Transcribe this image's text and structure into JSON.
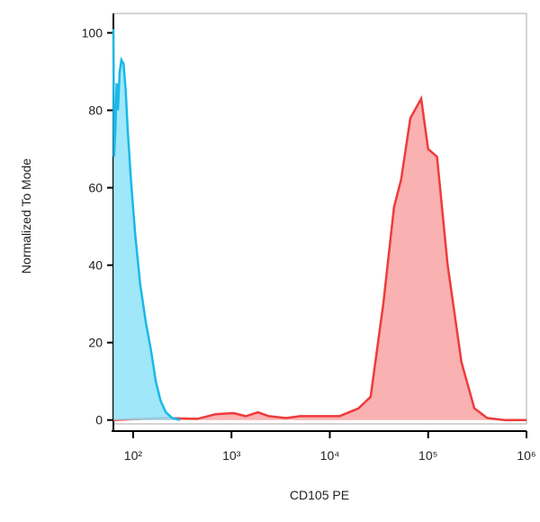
{
  "chart_data": {
    "type": "area",
    "x_label": "CD105 PE",
    "y_label": "Normalized To Mode",
    "xscale": "log",
    "xlim": [
      63,
      1000000
    ],
    "ylim": [
      -1,
      105
    ],
    "xticks": [
      {
        "value": 100,
        "label": "10²"
      },
      {
        "value": 1000,
        "label": "10³"
      },
      {
        "value": 10000,
        "label": "10⁴"
      },
      {
        "value": 100000,
        "label": "10⁵"
      },
      {
        "value": 1000000,
        "label": "10⁶"
      }
    ],
    "yticks": [
      0,
      20,
      40,
      60,
      80,
      100
    ],
    "series": [
      {
        "color": "#ee3b3b",
        "fill": "#f9a3a3",
        "x": [
          63,
          195,
          450,
          690,
          1050,
          1400,
          1860,
          2400,
          3600,
          5000,
          12600,
          19500,
          26000,
          35000,
          45000,
          53000,
          66000,
          85000,
          100000,
          123000,
          158000,
          218000,
          295000,
          400000,
          600000,
          1000000
        ],
        "values": [
          0,
          0.5,
          0.3,
          1.5,
          1.8,
          1,
          2,
          1,
          0.5,
          1,
          1,
          3,
          6,
          30,
          55,
          62,
          78,
          83,
          70,
          68,
          40,
          15,
          3,
          0.5,
          0,
          0
        ]
      },
      {
        "color": "#1ab8e8",
        "fill": "#8ee3f8",
        "x": [
          63,
          64,
          66,
          68,
          70,
          73,
          76,
          80,
          84,
          88,
          95,
          105,
          118,
          135,
          152,
          170,
          190,
          215,
          250,
          300
        ],
        "values": [
          101,
          68,
          75,
          87,
          80,
          90,
          93,
          92,
          85,
          75,
          62,
          48,
          35,
          25,
          18,
          10,
          5,
          2,
          0.5,
          0
        ]
      }
    ]
  }
}
